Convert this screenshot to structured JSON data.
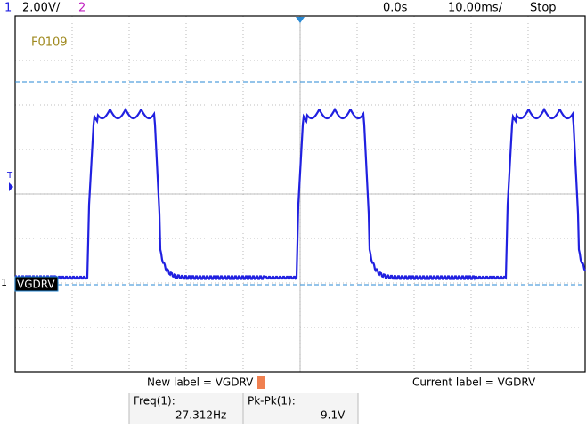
{
  "header": {
    "channel1": "1",
    "scale": "2.00V/",
    "channel2": "2",
    "delay": "0.0s",
    "timebase": "10.00ms/",
    "status": "Stop"
  },
  "screen": {
    "file_label": "F0109",
    "trigger_marker": "T",
    "ground_marker": "1",
    "channel_label": "VGDRV"
  },
  "label_bar": {
    "new_label": "New label = VGDRV",
    "current_label": "Current label = VGDRV"
  },
  "measurements": [
    {
      "name": "Freq(1):",
      "value": "27.312Hz"
    },
    {
      "name": "Pk-Pk(1):",
      "value": "9.1V"
    }
  ]
}
